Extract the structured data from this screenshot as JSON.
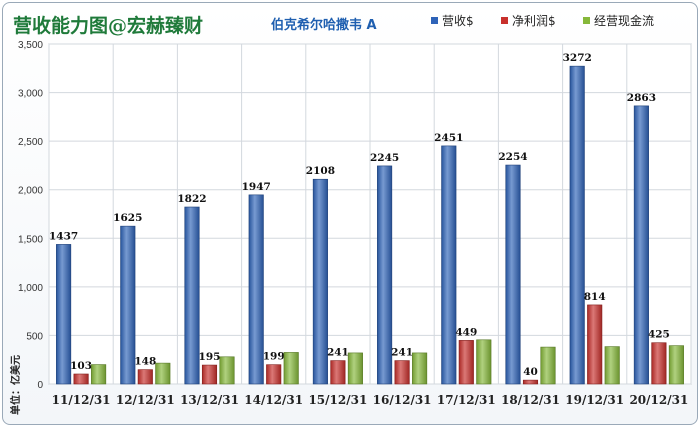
{
  "chart_data": {
    "type": "bar",
    "title": "营收能力图@宏赫臻财",
    "subtitle": "伯克希尔哈撒韦 A",
    "unit_label": "单位：亿美元",
    "categories": [
      "11/12/31",
      "12/12/31",
      "13/12/31",
      "14/12/31",
      "15/12/31",
      "16/12/31",
      "17/12/31",
      "18/12/31",
      "19/12/31",
      "20/12/31"
    ],
    "ylim": [
      0,
      3500
    ],
    "yticks": [
      0,
      500,
      1000,
      1500,
      2000,
      2500,
      3000,
      3500
    ],
    "ytick_labels": [
      "0",
      "500",
      "1,000",
      "1,500",
      "2,000",
      "2,500",
      "3,000",
      "3,500"
    ],
    "grid": true,
    "legend_position": "top-right",
    "series": [
      {
        "name": "营收$",
        "color": "#2e63b8",
        "values": [
          1437,
          1625,
          1822,
          1947,
          2108,
          2245,
          2451,
          2254,
          3272,
          2863
        ],
        "labels": [
          "1437",
          "1625",
          "1822",
          "1947",
          "2108",
          "2245",
          "2451",
          "2254",
          "3272",
          "2863"
        ]
      },
      {
        "name": "净利润$",
        "color": "#c8302c",
        "values": [
          103,
          148,
          195,
          199,
          241,
          241,
          449,
          40,
          814,
          425
        ],
        "labels": [
          "103",
          "148",
          "195",
          "199",
          "241",
          "241",
          "449",
          "40",
          "814",
          "425"
        ]
      },
      {
        "name": "经营现金流",
        "color": "#86b83a",
        "values": [
          200,
          215,
          280,
          325,
          320,
          320,
          455,
          380,
          385,
          395
        ],
        "labels": []
      }
    ]
  }
}
